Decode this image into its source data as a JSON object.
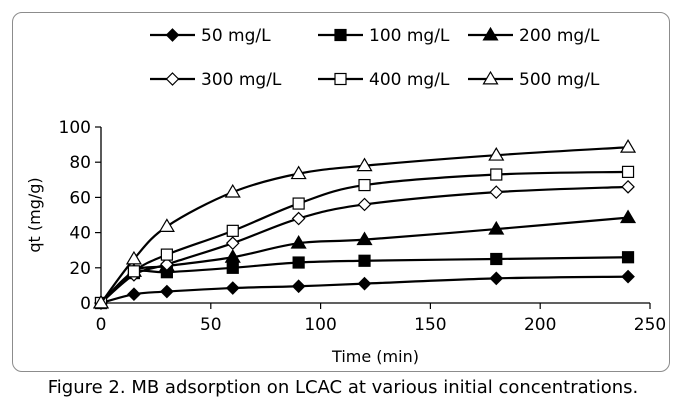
{
  "chart_data": {
    "type": "line",
    "title": "",
    "xlabel": "Time (min)",
    "ylabel": "qt (mg/g)",
    "xlim": [
      0,
      250
    ],
    "ylim": [
      0,
      100
    ],
    "xticks": [
      0,
      50,
      100,
      150,
      200,
      250
    ],
    "yticks": [
      0,
      20,
      40,
      60,
      80,
      100
    ],
    "grid": false,
    "legend_position": "top",
    "series": [
      {
        "name": "50 mg/L",
        "marker": "diamond-filled",
        "x": [
          0,
          15,
          30,
          60,
          90,
          120,
          180,
          240
        ],
        "y": [
          0,
          5,
          6.5,
          8.5,
          9.5,
          11,
          14,
          15
        ]
      },
      {
        "name": "100 mg/L",
        "marker": "square-filled",
        "x": [
          0,
          15,
          30,
          60,
          90,
          120,
          180,
          240
        ],
        "y": [
          0,
          17,
          17.5,
          20,
          23,
          24,
          25,
          26
        ]
      },
      {
        "name": "200 mg/L",
        "marker": "triangle-filled",
        "x": [
          0,
          15,
          30,
          60,
          90,
          120,
          180,
          240
        ],
        "y": [
          0,
          18,
          21,
          26,
          34,
          36,
          42,
          48.5
        ]
      },
      {
        "name": "300 mg/L",
        "marker": "diamond-open",
        "x": [
          0,
          15,
          30,
          60,
          90,
          120,
          180,
          240
        ],
        "y": [
          0,
          16,
          22,
          34,
          48,
          56,
          63,
          66
        ]
      },
      {
        "name": "400 mg/L",
        "marker": "square-open",
        "x": [
          0,
          15,
          30,
          60,
          90,
          120,
          180,
          240
        ],
        "y": [
          0,
          18,
          27.5,
          41,
          56.5,
          67,
          73,
          74.5
        ]
      },
      {
        "name": "500 mg/L",
        "marker": "triangle-open",
        "x": [
          0,
          15,
          30,
          60,
          90,
          120,
          180,
          240
        ],
        "y": [
          0,
          25,
          43.5,
          63,
          73.5,
          78,
          84,
          88.5
        ]
      }
    ]
  },
  "caption": "Figure 2.  MB adsorption on LCAC at various initial concentrations."
}
